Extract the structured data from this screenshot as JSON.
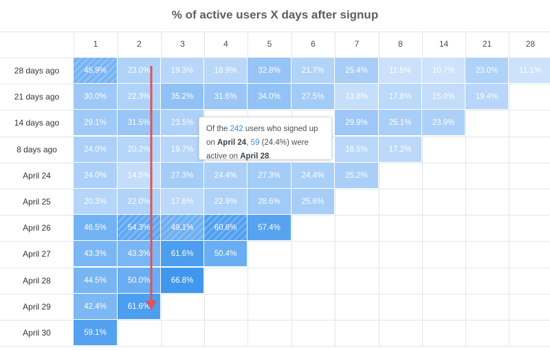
{
  "chart_data": {
    "type": "heatmap",
    "title": "% of active users X days after signup",
    "columns": [
      "1",
      "2",
      "3",
      "4",
      "5",
      "6",
      "7",
      "8",
      "14",
      "21",
      "28"
    ],
    "rows": [
      {
        "label": "28 days ago",
        "values": [
          "45.9%",
          "23.0%",
          "19.3%",
          "18.9%",
          "32.8%",
          "21.7%",
          "25.4%",
          "11.5%",
          "10.7%",
          "23.0%",
          "11.1%"
        ]
      },
      {
        "label": "21 days ago",
        "values": [
          "30.0%",
          "22.3%",
          "35.2%",
          "31.6%",
          "34.0%",
          "27.5%",
          "13.8%",
          "17.8%",
          "15.0%",
          "19.4%"
        ]
      },
      {
        "label": "14 days ago",
        "values": [
          "29.1%",
          "31.5%",
          "23.5%",
          null,
          null,
          null,
          "29.9%",
          "25.1%",
          "23.9%"
        ]
      },
      {
        "label": "8 days ago",
        "values": [
          "24.0%",
          "20.2%",
          "19.7%",
          null,
          null,
          null,
          "18.5%",
          "17.2%"
        ]
      },
      {
        "label": "April 24",
        "values": [
          "24.0%",
          "14.5%",
          "27.3%",
          "24.4%",
          "27.3%",
          "24.4%",
          "25.2%"
        ]
      },
      {
        "label": "April 25",
        "values": [
          "20.3%",
          "22.0%",
          "17.6%",
          "22.9%",
          "28.6%",
          "25.6%"
        ]
      },
      {
        "label": "April 26",
        "values": [
          "46.5%",
          "54.3%",
          "49.1%",
          "60.8%",
          "57.4%"
        ]
      },
      {
        "label": "April 27",
        "values": [
          "43.3%",
          "43.3%",
          "61.6%",
          "50.4%"
        ]
      },
      {
        "label": "April 28",
        "values": [
          "44.5%",
          "50.0%",
          "66.8%"
        ]
      },
      {
        "label": "April 29",
        "values": [
          "42.4%",
          "61.6%"
        ]
      },
      {
        "label": "April 30",
        "values": [
          "59.1%"
        ]
      }
    ],
    "incomplete_cells": [
      [
        0,
        0
      ],
      [
        6,
        1
      ],
      [
        6,
        2
      ],
      [
        6,
        3
      ]
    ],
    "color_scale": {
      "low": "#cfe3fb",
      "high": "#3d95ee"
    },
    "tooltip": {
      "part1": "Of the ",
      "users": "242",
      "part2": " users who signed up on ",
      "signup_date": "April 24",
      "part3": ", ",
      "active": "59",
      "part4": " (24.4%) were active on ",
      "active_date": "April 28",
      "part5": "."
    },
    "arrow_color": "#e0535a"
  }
}
